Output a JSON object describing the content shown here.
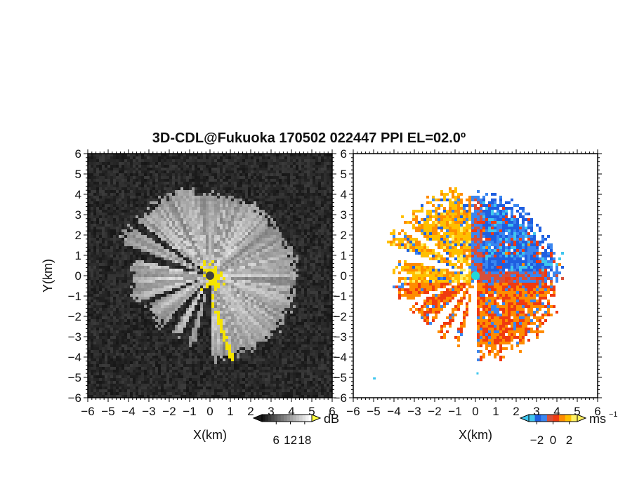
{
  "chart_data": [
    {
      "type": "heatmap",
      "title": "3D-CDL@Fukuoka 170502 022447 PPI EL=02.0º",
      "xlabel": "X(km)",
      "ylabel": "Y(km)",
      "xlim": [
        -6,
        6
      ],
      "ylim": [
        -6,
        6
      ],
      "x_ticks": [
        "-6",
        "-5",
        "-4",
        "-3",
        "-2",
        "-1",
        "0",
        "1",
        "2",
        "3",
        "4",
        "5",
        "6"
      ],
      "y_ticks": [
        "6",
        "5",
        "4",
        "3",
        "2",
        "1",
        "0",
        "-1",
        "-2",
        "-3",
        "-4",
        "-5",
        "-6"
      ],
      "colormap": "grayscale",
      "highlight_color": "#f5e400",
      "colorbar": {
        "unit": "dB",
        "ticks": [
          "6",
          "12",
          "18"
        ],
        "range": [
          0,
          21
        ]
      },
      "radar_site": {
        "x": 0,
        "y": 0,
        "color": "#404040"
      }
    },
    {
      "type": "heatmap",
      "xlabel": "X(km)",
      "xlim": [
        -6,
        6
      ],
      "ylim": [
        -6,
        6
      ],
      "x_ticks": [
        "-6",
        "-5",
        "-4",
        "-3",
        "-2",
        "-1",
        "0",
        "1",
        "2",
        "3",
        "4",
        "5",
        "6"
      ],
      "y_ticks": [
        "6",
        "5",
        "4",
        "3",
        "2",
        "1",
        "0",
        "-1",
        "-2",
        "-3",
        "-4",
        "-5",
        "-6"
      ],
      "colormap": "cyan-blue-red-yellow",
      "colorbar": {
        "unit": "ms",
        "unit_exponent": "−1",
        "ticks": [
          "−2",
          "0",
          "2"
        ],
        "range": [
          -3,
          3
        ]
      },
      "radar_site": {
        "x": 0,
        "y": 0,
        "color": "#22d8d8"
      }
    }
  ]
}
